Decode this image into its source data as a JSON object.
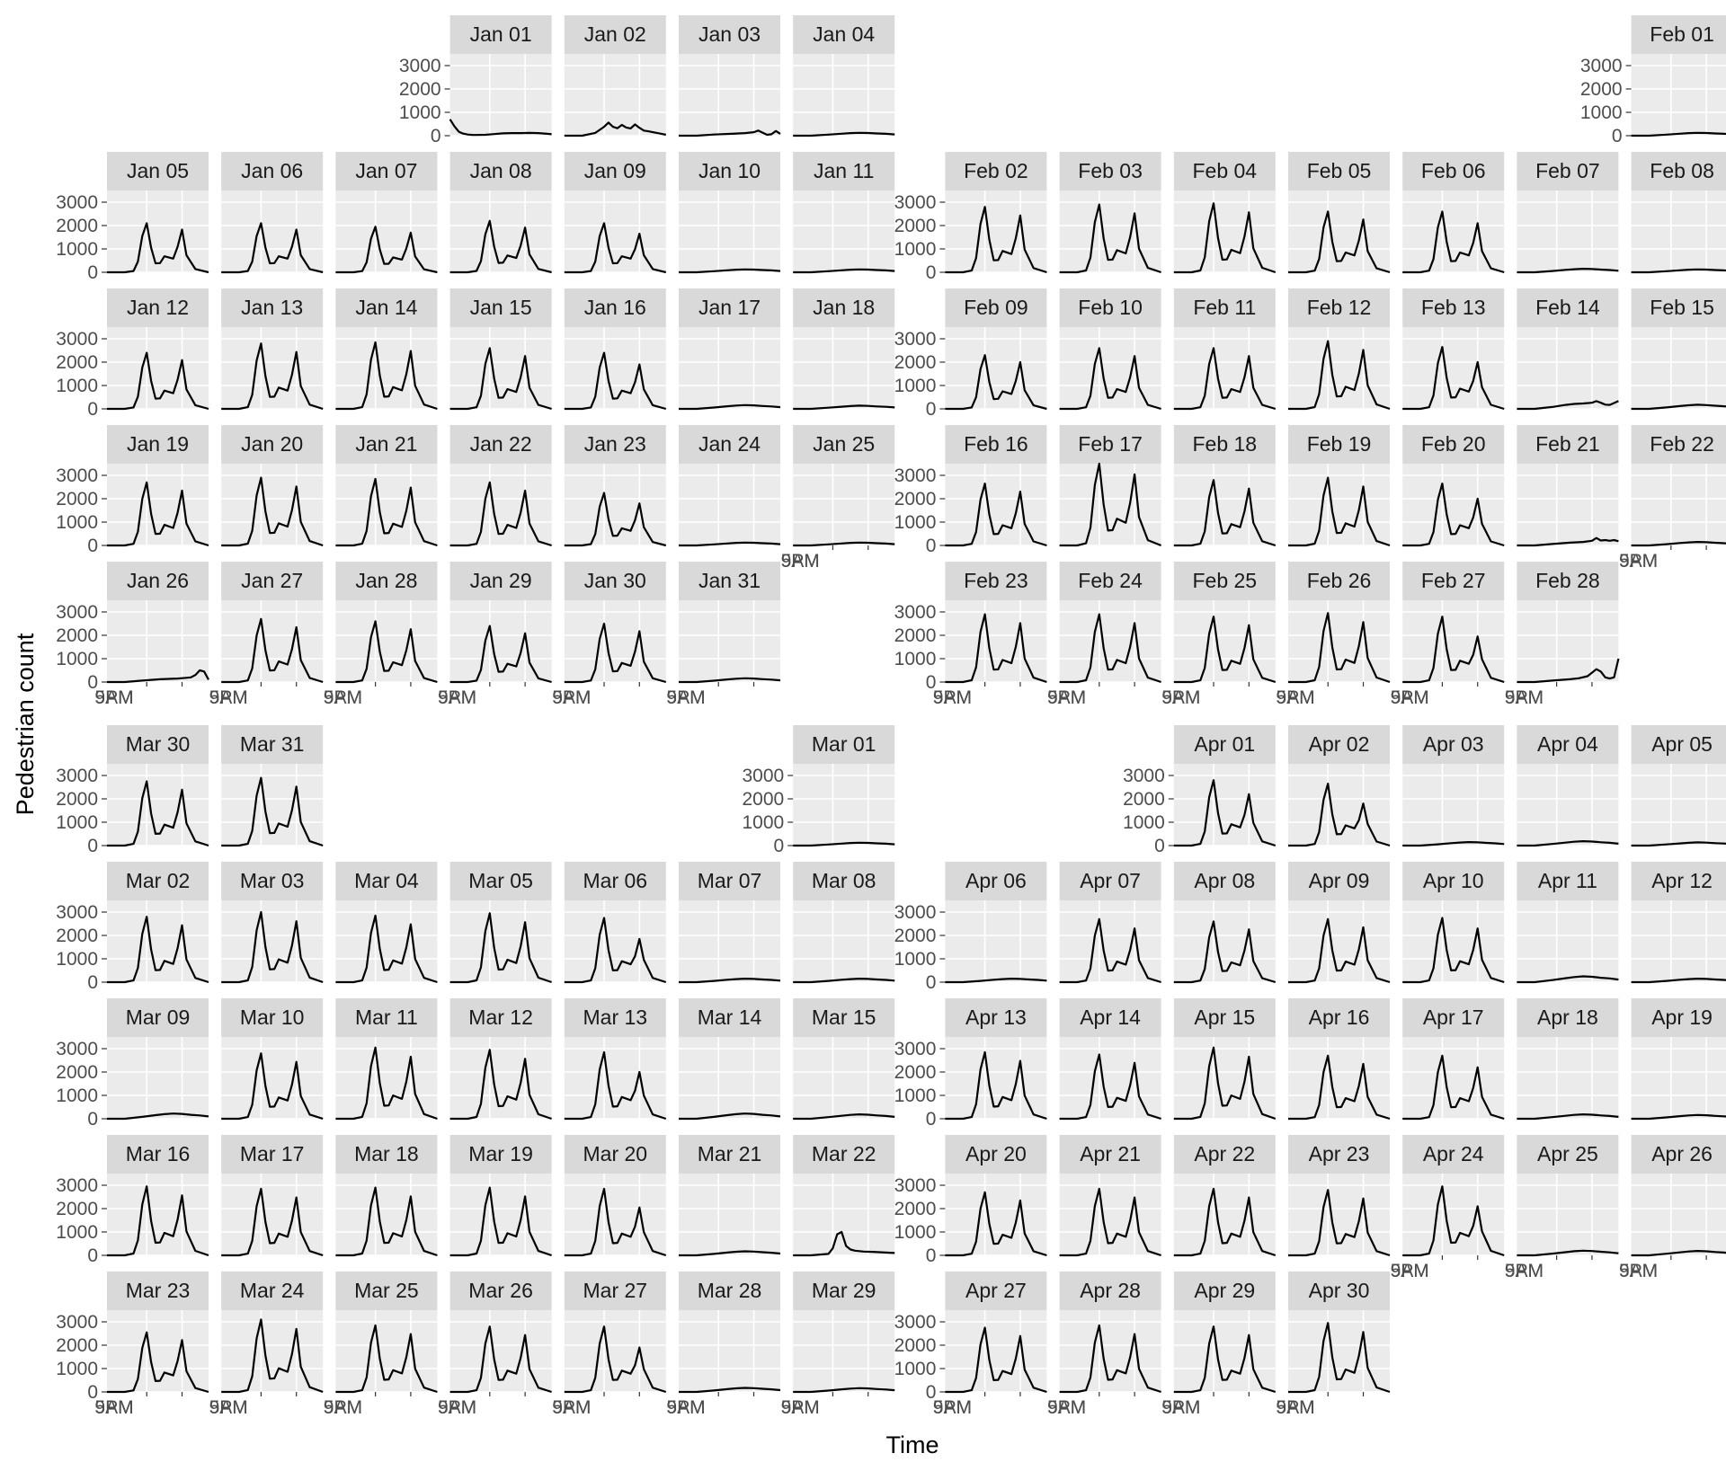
{
  "chart_data": {
    "type": "line",
    "layout": "calendar",
    "title": "",
    "xlabel": "Time",
    "ylabel": "Pedestrian count",
    "ylim": [
      0,
      3500
    ],
    "y_ticks": [
      0,
      1000,
      2000,
      3000
    ],
    "x_tick_labels": [
      "9AM",
      "5PM"
    ],
    "grid": true,
    "months": [
      {
        "name": "Jan",
        "first_weekday": 3,
        "days": 31
      },
      {
        "name": "Feb",
        "first_weekday": 6,
        "days": 28
      },
      {
        "name": "Mar",
        "first_weekday": 6,
        "days": 31
      },
      {
        "name": "Apr",
        "first_weekday": 2,
        "days": 30
      }
    ],
    "patterns": {
      "workday": {
        "x": [
          0,
          4,
          6,
          7,
          8,
          9,
          10,
          11,
          12,
          13,
          15,
          16,
          17,
          18,
          20,
          23
        ],
        "y_rel": [
          0,
          0,
          60,
          500,
          1700,
          2300,
          1150,
          420,
          430,
          750,
          640,
          1200,
          2000,
          800,
          150,
          0
        ]
      },
      "quiet": {
        "x": [
          0,
          4,
          8,
          11,
          13,
          15,
          17,
          19,
          21,
          23
        ],
        "y_rel": [
          0,
          0,
          45,
          85,
          110,
          125,
          115,
          95,
          80,
          55
        ]
      }
    },
    "days": [
      {
        "label": "Jan 01",
        "type": "custom",
        "x": [
          0,
          1,
          2,
          3,
          4,
          5,
          6,
          8,
          10,
          12,
          14,
          16,
          18,
          20,
          22,
          23
        ],
        "y": [
          700,
          400,
          170,
          90,
          50,
          35,
          30,
          40,
          70,
          100,
          110,
          110,
          120,
          110,
          80,
          60
        ]
      },
      {
        "label": "Jan 02",
        "type": "custom",
        "x": [
          0,
          4,
          7,
          9,
          10,
          11,
          12,
          13,
          14,
          15,
          16,
          17,
          18,
          19,
          20,
          22,
          23
        ],
        "y": [
          0,
          0,
          120,
          380,
          560,
          380,
          320,
          460,
          350,
          310,
          480,
          340,
          220,
          190,
          150,
          80,
          40
        ]
      },
      {
        "label": "Jan 03",
        "type": "custom",
        "x": [
          0,
          4,
          8,
          12,
          15,
          17,
          18,
          19,
          20,
          21,
          22,
          23
        ],
        "y": [
          0,
          0,
          50,
          80,
          110,
          150,
          220,
          130,
          40,
          60,
          200,
          80
        ]
      },
      {
        "label": "Jan 04",
        "type": "quiet",
        "peak": 1.0
      },
      {
        "label": "Jan 05",
        "type": "workday",
        "peak": 2100
      },
      {
        "label": "Jan 06",
        "type": "workday",
        "peak": 2100
      },
      {
        "label": "Jan 07",
        "type": "workday",
        "peak": 1950
      },
      {
        "label": "Jan 08",
        "type": "workday",
        "peak": 2200
      },
      {
        "label": "Jan 09",
        "type": "workday",
        "peak": 2100,
        "evening": 1650
      },
      {
        "label": "Jan 10",
        "type": "quiet",
        "peak": 1.0
      },
      {
        "label": "Jan 11",
        "type": "quiet",
        "peak": 1.0
      },
      {
        "label": "Jan 12",
        "type": "workday",
        "peak": 2400
      },
      {
        "label": "Jan 13",
        "type": "workday",
        "peak": 2800
      },
      {
        "label": "Jan 14",
        "type": "workday",
        "peak": 2850
      },
      {
        "label": "Jan 15",
        "type": "workday",
        "peak": 2600
      },
      {
        "label": "Jan 16",
        "type": "workday",
        "peak": 2400,
        "evening": 1900
      },
      {
        "label": "Jan 17",
        "type": "quiet",
        "peak": 1.3
      },
      {
        "label": "Jan 18",
        "type": "quiet",
        "peak": 1.1
      },
      {
        "label": "Jan 19",
        "type": "workday",
        "peak": 2700
      },
      {
        "label": "Jan 20",
        "type": "workday",
        "peak": 2900
      },
      {
        "label": "Jan 21",
        "type": "workday",
        "peak": 2850
      },
      {
        "label": "Jan 22",
        "type": "workday",
        "peak": 2700
      },
      {
        "label": "Jan 23",
        "type": "workday",
        "peak": 2250,
        "evening": 1800
      },
      {
        "label": "Jan 24",
        "type": "quiet",
        "peak": 1.0
      },
      {
        "label": "Jan 25",
        "type": "quiet",
        "peak": 1.0
      },
      {
        "label": "Jan 26",
        "type": "custom",
        "x": [
          0,
          4,
          8,
          12,
          16,
          18,
          19,
          20,
          21,
          22,
          23
        ],
        "y": [
          0,
          0,
          60,
          120,
          150,
          180,
          200,
          300,
          500,
          450,
          100
        ]
      },
      {
        "label": "Jan 27",
        "type": "workday",
        "peak": 2700
      },
      {
        "label": "Jan 28",
        "type": "workday",
        "peak": 2600
      },
      {
        "label": "Jan 29",
        "type": "workday",
        "peak": 2400
      },
      {
        "label": "Jan 30",
        "type": "workday",
        "peak": 2500
      },
      {
        "label": "Jan 31",
        "type": "quiet",
        "peak": 1.3
      },
      {
        "label": "Feb 01",
        "type": "quiet",
        "peak": 1.0
      },
      {
        "label": "Feb 02",
        "type": "workday",
        "peak": 2800
      },
      {
        "label": "Feb 03",
        "type": "workday",
        "peak": 2900
      },
      {
        "label": "Feb 04",
        "type": "workday",
        "peak": 2950
      },
      {
        "label": "Feb 05",
        "type": "workday",
        "peak": 2600
      },
      {
        "label": "Feb 06",
        "type": "workday",
        "peak": 2600,
        "evening": 2100
      },
      {
        "label": "Feb 07",
        "type": "quiet",
        "peak": 1.2
      },
      {
        "label": "Feb 08",
        "type": "quiet",
        "peak": 1.0
      },
      {
        "label": "Feb 09",
        "type": "workday",
        "peak": 2300
      },
      {
        "label": "Feb 10",
        "type": "workday",
        "peak": 2600
      },
      {
        "label": "Feb 11",
        "type": "workday",
        "peak": 2600
      },
      {
        "label": "Feb 12",
        "type": "workday",
        "peak": 2900
      },
      {
        "label": "Feb 13",
        "type": "workday",
        "peak": 2650,
        "evening": 2000
      },
      {
        "label": "Feb 14",
        "type": "custom",
        "x": [
          0,
          4,
          8,
          11,
          13,
          15,
          17,
          18,
          19,
          20,
          21,
          22,
          23
        ],
        "y": [
          0,
          0,
          80,
          170,
          210,
          230,
          260,
          330,
          260,
          180,
          170,
          250,
          340
        ]
      },
      {
        "label": "Feb 15",
        "type": "quiet",
        "peak": 1.4
      },
      {
        "label": "Feb 16",
        "type": "workday",
        "peak": 2650
      },
      {
        "label": "Feb 17",
        "type": "workday",
        "peak": 3500
      },
      {
        "label": "Feb 18",
        "type": "workday",
        "peak": 2800
      },
      {
        "label": "Feb 19",
        "type": "workday",
        "peak": 2900
      },
      {
        "label": "Feb 20",
        "type": "workday",
        "peak": 2650,
        "evening": 2000
      },
      {
        "label": "Feb 21",
        "type": "custom",
        "x": [
          0,
          4,
          8,
          12,
          15,
          17,
          18,
          19,
          20,
          21,
          22,
          23
        ],
        "y": [
          0,
          0,
          60,
          120,
          150,
          200,
          320,
          210,
          230,
          200,
          230,
          180
        ]
      },
      {
        "label": "Feb 22",
        "type": "quiet",
        "peak": 1.2
      },
      {
        "label": "Feb 23",
        "type": "workday",
        "peak": 2900
      },
      {
        "label": "Feb 24",
        "type": "workday",
        "peak": 2900
      },
      {
        "label": "Feb 25",
        "type": "workday",
        "peak": 2800
      },
      {
        "label": "Feb 26",
        "type": "workday",
        "peak": 2950
      },
      {
        "label": "Feb 27",
        "type": "workday",
        "peak": 2800,
        "evening": 1950
      },
      {
        "label": "Feb 28",
        "type": "custom",
        "x": [
          0,
          4,
          8,
          12,
          14,
          16,
          17,
          18,
          19,
          20,
          21,
          22,
          23
        ],
        "y": [
          0,
          0,
          60,
          120,
          160,
          250,
          400,
          550,
          450,
          200,
          150,
          200,
          1000
        ]
      },
      {
        "label": "Mar 01",
        "type": "quiet",
        "peak": 1.0
      },
      {
        "label": "Mar 02",
        "type": "workday",
        "peak": 2800
      },
      {
        "label": "Mar 03",
        "type": "workday",
        "peak": 3000
      },
      {
        "label": "Mar 04",
        "type": "workday",
        "peak": 2850
      },
      {
        "label": "Mar 05",
        "type": "workday",
        "peak": 2950
      },
      {
        "label": "Mar 06",
        "type": "workday",
        "peak": 2750,
        "evening": 1850
      },
      {
        "label": "Mar 07",
        "type": "quiet",
        "peak": 1.2
      },
      {
        "label": "Mar 08",
        "type": "quiet",
        "peak": 1.2
      },
      {
        "label": "Mar 09",
        "type": "quiet",
        "peak": 1.8
      },
      {
        "label": "Mar 10",
        "type": "workday",
        "peak": 2800
      },
      {
        "label": "Mar 11",
        "type": "workday",
        "peak": 3050
      },
      {
        "label": "Mar 12",
        "type": "workday",
        "peak": 2950
      },
      {
        "label": "Mar 13",
        "type": "workday",
        "peak": 2850,
        "evening": 2000
      },
      {
        "label": "Mar 14",
        "type": "quiet",
        "peak": 1.8
      },
      {
        "label": "Mar 15",
        "type": "quiet",
        "peak": 1.5
      },
      {
        "label": "Mar 16",
        "type": "workday",
        "peak": 2950
      },
      {
        "label": "Mar 17",
        "type": "workday",
        "peak": 2850
      },
      {
        "label": "Mar 18",
        "type": "workday",
        "peak": 2900
      },
      {
        "label": "Mar 19",
        "type": "workday",
        "peak": 2900
      },
      {
        "label": "Mar 20",
        "type": "workday",
        "peak": 2850,
        "evening": 2050
      },
      {
        "label": "Mar 21",
        "type": "quiet",
        "peak": 1.4
      },
      {
        "label": "Mar 22",
        "type": "custom",
        "x": [
          0,
          4,
          8,
          9,
          10,
          11,
          12,
          13,
          14,
          16,
          18,
          20,
          23
        ],
        "y": [
          0,
          0,
          60,
          300,
          900,
          1000,
          400,
          250,
          200,
          160,
          150,
          130,
          100
        ]
      },
      {
        "label": "Mar 23",
        "type": "workday",
        "peak": 2550
      },
      {
        "label": "Mar 24",
        "type": "workday",
        "peak": 3100
      },
      {
        "label": "Mar 25",
        "type": "workday",
        "peak": 2850
      },
      {
        "label": "Mar 26",
        "type": "workday",
        "peak": 2800
      },
      {
        "label": "Mar 27",
        "type": "workday",
        "peak": 2800,
        "evening": 1900
      },
      {
        "label": "Mar 28",
        "type": "quiet",
        "peak": 1.4
      },
      {
        "label": "Mar 29",
        "type": "quiet",
        "peak": 1.3
      },
      {
        "label": "Mar 30",
        "type": "workday",
        "peak": 2750
      },
      {
        "label": "Mar 31",
        "type": "workday",
        "peak": 2900
      },
      {
        "label": "Apr 01",
        "type": "workday",
        "peak": 2800,
        "evening": 2200
      },
      {
        "label": "Apr 02",
        "type": "workday",
        "peak": 2650,
        "evening": 1800
      },
      {
        "label": "Apr 03",
        "type": "quiet",
        "peak": 1.2
      },
      {
        "label": "Apr 04",
        "type": "quiet",
        "peak": 1.5
      },
      {
        "label": "Apr 05",
        "type": "quiet",
        "peak": 1.1
      },
      {
        "label": "Apr 06",
        "type": "quiet",
        "peak": 1.2
      },
      {
        "label": "Apr 07",
        "type": "workday",
        "peak": 2700,
        "evening": 2300
      },
      {
        "label": "Apr 08",
        "type": "workday",
        "peak": 2600
      },
      {
        "label": "Apr 09",
        "type": "workday",
        "peak": 2700
      },
      {
        "label": "Apr 10",
        "type": "workday",
        "peak": 2750,
        "evening": 2300
      },
      {
        "label": "Apr 11",
        "type": "quiet",
        "peak": 2.0
      },
      {
        "label": "Apr 12",
        "type": "quiet",
        "peak": 1.2
      },
      {
        "label": "Apr 13",
        "type": "workday",
        "peak": 2850
      },
      {
        "label": "Apr 14",
        "type": "workday",
        "peak": 2750
      },
      {
        "label": "Apr 15",
        "type": "workday",
        "peak": 3050
      },
      {
        "label": "Apr 16",
        "type": "workday",
        "peak": 2700
      },
      {
        "label": "Apr 17",
        "type": "workday",
        "peak": 2700,
        "evening": 2200
      },
      {
        "label": "Apr 18",
        "type": "quiet",
        "peak": 1.5
      },
      {
        "label": "Apr 19",
        "type": "quiet",
        "peak": 1.3
      },
      {
        "label": "Apr 20",
        "type": "workday",
        "peak": 2700
      },
      {
        "label": "Apr 21",
        "type": "workday",
        "peak": 2850
      },
      {
        "label": "Apr 22",
        "type": "workday",
        "peak": 2850
      },
      {
        "label": "Apr 23",
        "type": "workday",
        "peak": 2800
      },
      {
        "label": "Apr 24",
        "type": "workday",
        "peak": 2950,
        "evening": 2100
      },
      {
        "label": "Apr 25",
        "type": "quiet",
        "peak": 1.6
      },
      {
        "label": "Apr 26",
        "type": "quiet",
        "peak": 1.5
      },
      {
        "label": "Apr 27",
        "type": "workday",
        "peak": 2750
      },
      {
        "label": "Apr 28",
        "type": "workday",
        "peak": 2850
      },
      {
        "label": "Apr 29",
        "type": "workday",
        "peak": 2800
      },
      {
        "label": "Apr 30",
        "type": "workday",
        "peak": 2950
      }
    ]
  }
}
